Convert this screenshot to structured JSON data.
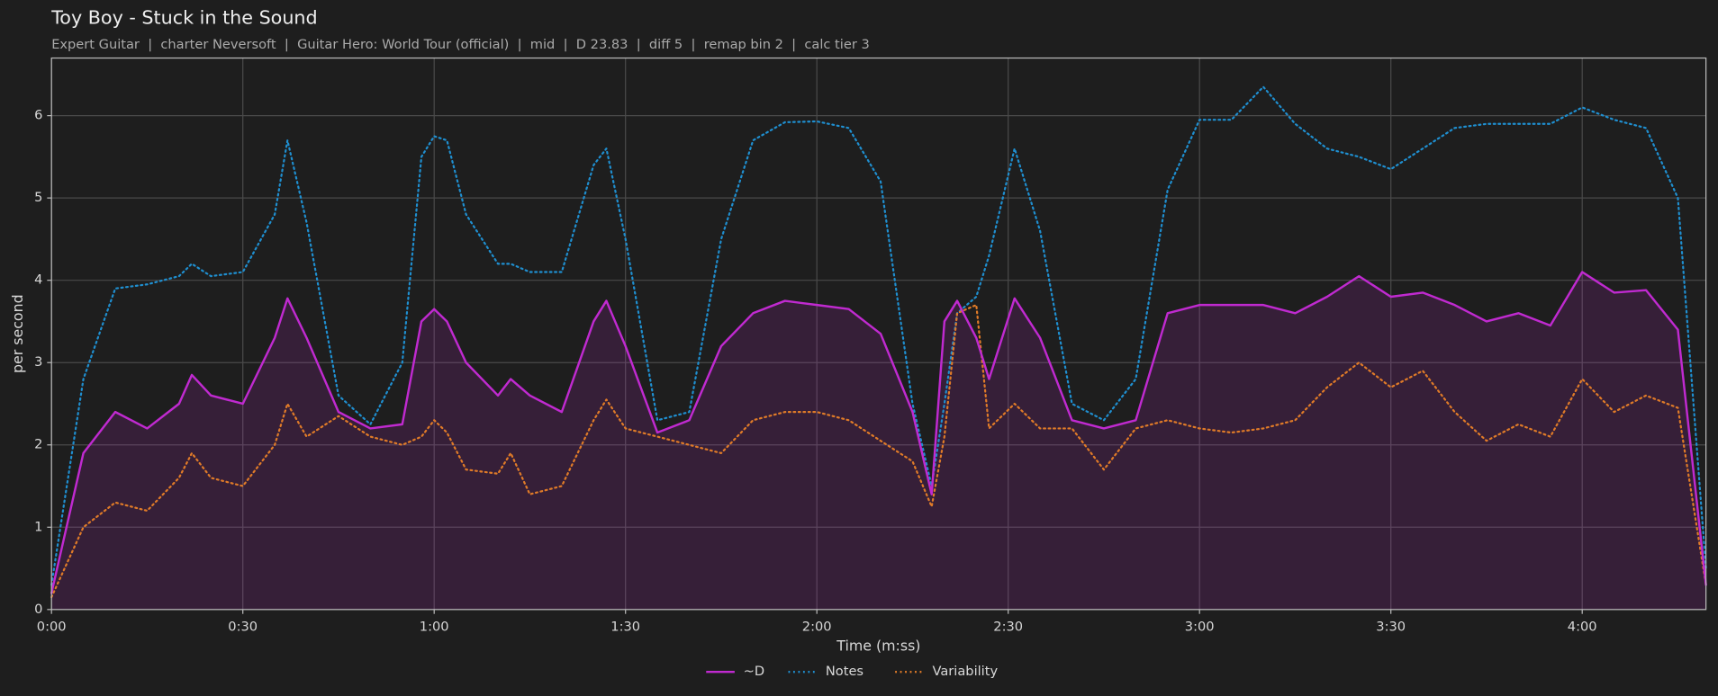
{
  "chart_data": {
    "type": "line",
    "title": "Toy Boy - Stuck in the Sound",
    "subtitle": "Expert Guitar  |  charter Neversoft  |  Guitar Hero: World Tour (official)  |  mid  |  D 23.83  |  diff 5  |  remap bin 2  |  calc tier 3",
    "x_label": "Time (m:ss)",
    "y_label": "per second",
    "x": [
      0,
      5,
      10,
      15,
      20,
      22,
      25,
      30,
      35,
      37,
      40,
      45,
      50,
      55,
      58,
      60,
      62,
      65,
      70,
      72,
      75,
      80,
      85,
      87,
      90,
      95,
      100,
      105,
      110,
      115,
      120,
      125,
      130,
      135,
      138,
      140,
      142,
      145,
      147,
      151,
      155,
      160,
      165,
      170,
      175,
      180,
      185,
      190,
      195,
      200,
      205,
      210,
      215,
      220,
      225,
      230,
      235,
      240,
      245,
      250,
      255,
      259.4
    ],
    "series": [
      {
        "name": "~D",
        "color": "#c02ad0",
        "dash": "solid",
        "area": true,
        "values": [
          0.2,
          1.9,
          2.4,
          2.2,
          2.5,
          2.85,
          2.6,
          2.5,
          3.3,
          3.78,
          3.3,
          2.4,
          2.2,
          2.25,
          3.5,
          3.65,
          3.5,
          3.0,
          2.6,
          2.8,
          2.6,
          2.4,
          3.5,
          3.75,
          3.2,
          2.15,
          2.3,
          3.2,
          3.6,
          3.75,
          3.7,
          3.65,
          3.35,
          2.4,
          1.4,
          3.5,
          3.75,
          3.3,
          2.8,
          3.78,
          3.3,
          2.3,
          2.2,
          2.3,
          3.6,
          3.7,
          3.7,
          3.7,
          3.6,
          3.8,
          4.05,
          3.8,
          3.85,
          3.7,
          3.5,
          3.6,
          3.45,
          4.1,
          3.85,
          3.88,
          3.4,
          0.3
        ]
      },
      {
        "name": "Notes",
        "color": "#1f8fd0",
        "dash": "dotted",
        "area": false,
        "values": [
          0.3,
          2.8,
          3.9,
          3.95,
          4.05,
          4.2,
          4.05,
          4.1,
          4.8,
          5.7,
          4.7,
          2.6,
          2.25,
          3.0,
          5.5,
          5.75,
          5.7,
          4.8,
          4.2,
          4.2,
          4.1,
          4.1,
          5.4,
          5.6,
          4.5,
          2.3,
          2.4,
          4.5,
          5.7,
          5.92,
          5.93,
          5.85,
          5.2,
          2.5,
          1.5,
          2.5,
          3.6,
          3.8,
          4.3,
          5.6,
          4.6,
          2.5,
          2.3,
          2.8,
          5.1,
          5.95,
          5.95,
          6.35,
          5.9,
          5.6,
          5.5,
          5.35,
          5.6,
          5.85,
          5.9,
          5.9,
          5.9,
          6.1,
          5.95,
          5.85,
          5.0,
          0.5
        ]
      },
      {
        "name": "Variability",
        "color": "#e07b28",
        "dash": "dotted",
        "area": false,
        "values": [
          0.15,
          1.0,
          1.3,
          1.2,
          1.6,
          1.9,
          1.6,
          1.5,
          2.0,
          2.5,
          2.1,
          2.35,
          2.1,
          2.0,
          2.1,
          2.3,
          2.15,
          1.7,
          1.65,
          1.9,
          1.4,
          1.5,
          2.3,
          2.55,
          2.2,
          2.1,
          2.0,
          1.9,
          2.3,
          2.4,
          2.4,
          2.3,
          2.05,
          1.8,
          1.25,
          2.1,
          3.6,
          3.7,
          2.2,
          2.5,
          2.2,
          2.2,
          1.7,
          2.2,
          2.3,
          2.2,
          2.15,
          2.2,
          2.3,
          2.7,
          3.0,
          2.7,
          2.9,
          2.4,
          2.05,
          2.25,
          2.1,
          2.8,
          2.4,
          2.6,
          2.45,
          0.3
        ]
      }
    ],
    "xlim": [
      0,
      259.4
    ],
    "ylim": [
      0,
      6.7
    ],
    "xticks": [
      {
        "value": 0,
        "label": "0:00"
      },
      {
        "value": 30,
        "label": "0:30"
      },
      {
        "value": 60,
        "label": "1:00"
      },
      {
        "value": 90,
        "label": "1:30"
      },
      {
        "value": 120,
        "label": "2:00"
      },
      {
        "value": 150,
        "label": "2:30"
      },
      {
        "value": 180,
        "label": "3:00"
      },
      {
        "value": 210,
        "label": "3:30"
      },
      {
        "value": 240,
        "label": "4:00"
      }
    ],
    "yticks": [
      0,
      1,
      2,
      3,
      4,
      5,
      6
    ],
    "grid": true,
    "legend": "bottom"
  }
}
